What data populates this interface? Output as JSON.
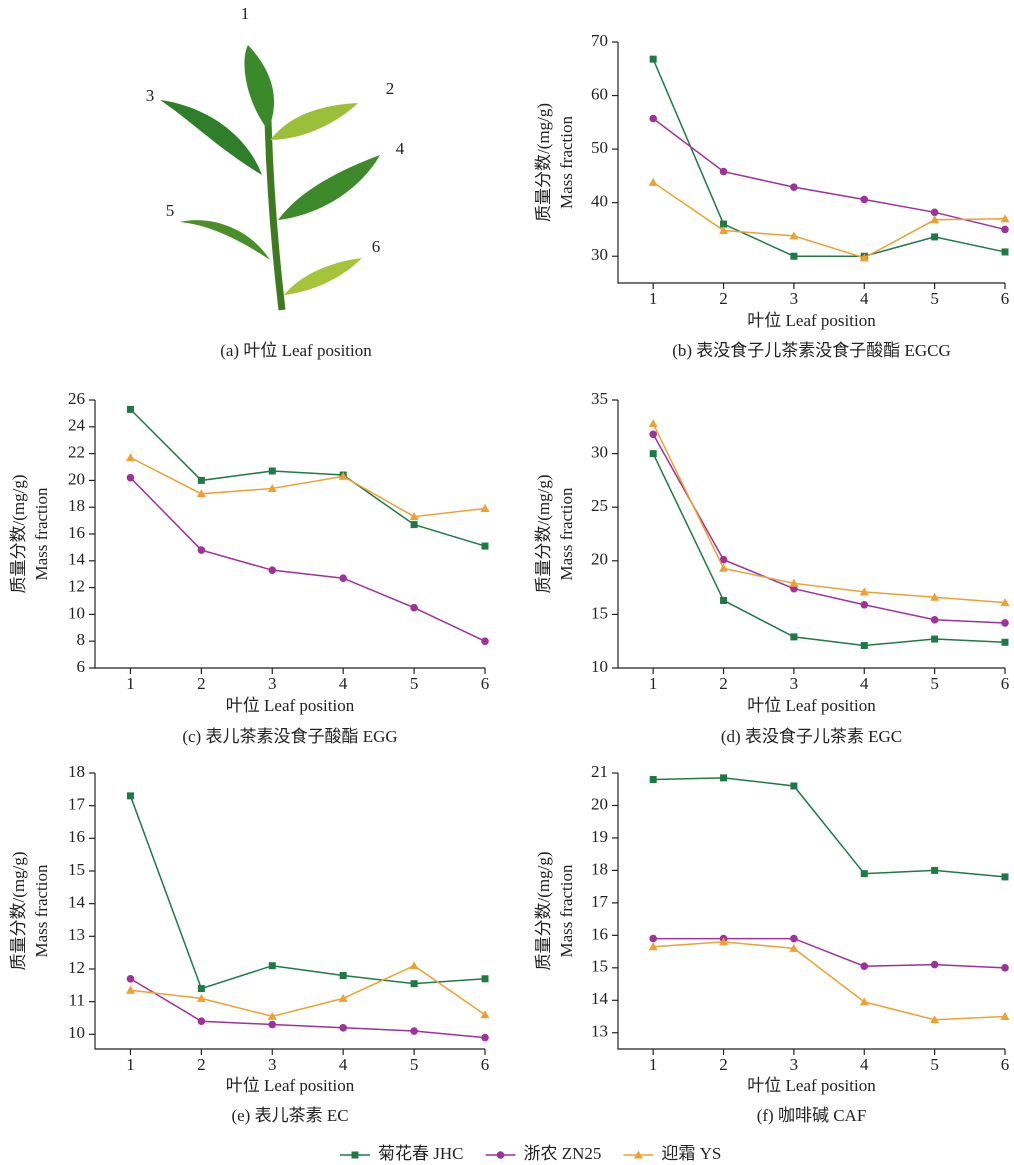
{
  "leaf_panel": {
    "labels": [
      "1",
      "2",
      "3",
      "4",
      "5",
      "6"
    ],
    "caption": "(a) 叶位 Leaf position"
  },
  "chart_data": [
    {
      "type": "line",
      "caption": "(b) 表没食子儿茶素没食子酸酯 EGCG",
      "ylabel": [
        "质量分数/(mg/g)",
        "Mass fraction"
      ],
      "xlabel": "叶位 Leaf position",
      "x": [
        1,
        2,
        3,
        4,
        5,
        6
      ],
      "xlim": [
        0.5,
        6
      ],
      "xticks": [
        1,
        2,
        3,
        4,
        5,
        6
      ],
      "ylim": [
        25,
        70
      ],
      "yticks": [
        30,
        40,
        50,
        60,
        70
      ],
      "series": [
        {
          "name": "菊花春 JHC",
          "color": "#1e7a45",
          "marker": "square",
          "values": [
            66.8,
            36,
            30,
            30,
            33.6,
            30.8
          ]
        },
        {
          "name": "浙农 ZN25",
          "color": "#a0309a",
          "marker": "circle",
          "values": [
            55.7,
            45.8,
            42.9,
            40.6,
            38.2,
            35
          ]
        },
        {
          "name": "迎霜 YS",
          "color": "#f0a030",
          "marker": "triangle",
          "values": [
            43.8,
            34.8,
            33.8,
            29.7,
            36.8,
            37
          ]
        }
      ]
    },
    {
      "type": "line",
      "caption": "(c) 表儿茶素没食子酸酯 EGG",
      "ylabel": [
        "质量分数/(mg/g)",
        "Mass fraction"
      ],
      "xlabel": "叶位 Leaf position",
      "x": [
        1,
        2,
        3,
        4,
        5,
        6
      ],
      "xlim": [
        0.5,
        6
      ],
      "xticks": [
        1,
        2,
        3,
        4,
        5,
        6
      ],
      "ylim": [
        6,
        26
      ],
      "yticks": [
        6,
        8,
        10,
        12,
        14,
        16,
        18,
        20,
        22,
        24,
        26
      ],
      "series": [
        {
          "name": "菊花春 JHC",
          "color": "#1e7a45",
          "marker": "square",
          "values": [
            25.3,
            20,
            20.7,
            20.4,
            16.7,
            15.1
          ]
        },
        {
          "name": "浙农 ZN25",
          "color": "#a0309a",
          "marker": "circle",
          "values": [
            20.2,
            14.8,
            13.3,
            12.7,
            10.5,
            8
          ]
        },
        {
          "name": "迎霜 YS",
          "color": "#f0a030",
          "marker": "triangle",
          "values": [
            21.7,
            19,
            19.4,
            20.3,
            17.3,
            17.9
          ]
        }
      ]
    },
    {
      "type": "line",
      "caption": "(d) 表没食子儿茶素 EGC",
      "ylabel": [
        "质量分数/(mg/g)",
        "Mass fraction"
      ],
      "xlabel": "叶位 Leaf position",
      "x": [
        1,
        2,
        3,
        4,
        5,
        6
      ],
      "xlim": [
        0.5,
        6
      ],
      "xticks": [
        1,
        2,
        3,
        4,
        5,
        6
      ],
      "ylim": [
        10,
        35
      ],
      "yticks": [
        10,
        15,
        20,
        25,
        30,
        35
      ],
      "series": [
        {
          "name": "菊花春 JHC",
          "color": "#1e7a45",
          "marker": "square",
          "values": [
            30,
            16.3,
            12.9,
            12.1,
            12.7,
            12.4
          ]
        },
        {
          "name": "浙农 ZN25",
          "color": "#a0309a",
          "marker": "circle",
          "values": [
            31.8,
            20.1,
            17.4,
            15.9,
            14.5,
            14.2
          ]
        },
        {
          "name": "迎霜 YS",
          "color": "#f0a030",
          "marker": "triangle",
          "values": [
            32.8,
            19.3,
            17.9,
            17.1,
            16.6,
            16.1
          ]
        }
      ]
    },
    {
      "type": "line",
      "caption": "(e) 表儿茶素 EC",
      "ylabel": [
        "质量分数/(mg/g)",
        "Mass fraction"
      ],
      "xlabel": "叶位 Leaf position",
      "x": [
        1,
        2,
        3,
        4,
        5,
        6
      ],
      "xlim": [
        0.5,
        6
      ],
      "xticks": [
        1,
        2,
        3,
        4,
        5,
        6
      ],
      "ylim": [
        9.55,
        18
      ],
      "yticks": [
        10,
        11,
        12,
        13,
        14,
        15,
        16,
        17,
        18
      ],
      "series": [
        {
          "name": "菊花春 JHC",
          "color": "#1e7a45",
          "marker": "square",
          "values": [
            17.3,
            11.4,
            12.1,
            11.8,
            11.55,
            11.7
          ]
        },
        {
          "name": "浙农 ZN25",
          "color": "#a0309a",
          "marker": "circle",
          "values": [
            11.7,
            10.4,
            10.3,
            10.2,
            10.1,
            9.9
          ]
        },
        {
          "name": "迎霜 YS",
          "color": "#f0a030",
          "marker": "triangle",
          "values": [
            11.35,
            11.1,
            10.55,
            11.1,
            12.1,
            10.6
          ]
        }
      ]
    },
    {
      "type": "line",
      "caption": "(f) 咖啡碱 CAF",
      "ylabel": [
        "质量分数/(mg/g)",
        "Mass fraction"
      ],
      "xlabel": "叶位 Leaf position",
      "x": [
        1,
        2,
        3,
        4,
        5,
        6
      ],
      "xlim": [
        0.5,
        6
      ],
      "xticks": [
        1,
        2,
        3,
        4,
        5,
        6
      ],
      "ylim": [
        12.5,
        21
      ],
      "yticks": [
        13,
        14,
        15,
        16,
        17,
        18,
        19,
        20,
        21
      ],
      "series": [
        {
          "name": "菊花春 JHC",
          "color": "#1e7a45",
          "marker": "square",
          "values": [
            20.8,
            20.85,
            20.6,
            17.9,
            18,
            17.8
          ]
        },
        {
          "name": "浙农 ZN25",
          "color": "#a0309a",
          "marker": "circle",
          "values": [
            15.9,
            15.9,
            15.9,
            15.05,
            15.1,
            15
          ]
        },
        {
          "name": "迎霜 YS",
          "color": "#f0a030",
          "marker": "triangle",
          "values": [
            15.65,
            15.8,
            15.6,
            13.95,
            13.4,
            13.5
          ]
        }
      ]
    }
  ]
}
